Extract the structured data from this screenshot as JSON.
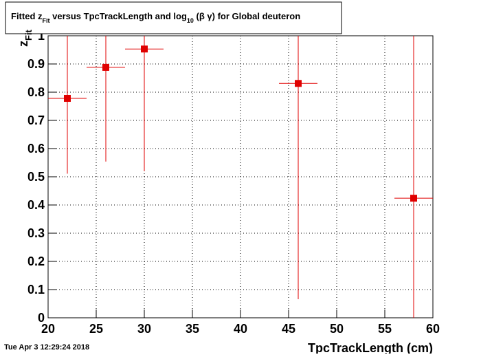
{
  "chart_data": {
    "type": "errorbar",
    "title_parts": [
      "Fitted  z",
      "Fit",
      "  versus TpcTrackLength and log",
      "10",
      " (β γ) for Global deuteron"
    ],
    "y_label_parts": [
      "z",
      "Fit"
    ],
    "x_label": "TpcTrackLength (cm)",
    "timestamp": "Tue Apr  3 12:29:24 2018",
    "x": [
      22,
      26,
      30,
      46,
      58
    ],
    "xerr": [
      2,
      2,
      2,
      2,
      2
    ],
    "values": [
      0.778,
      0.888,
      0.953,
      0.831,
      0.424
    ],
    "yerr": [
      0.267,
      0.334,
      0.433,
      0.765,
      0.6
    ],
    "color": "#e00000",
    "xlim": [
      20,
      60
    ],
    "ylim": [
      0,
      1
    ],
    "xticks": [
      20,
      25,
      30,
      35,
      40,
      45,
      50,
      55,
      60
    ],
    "yticks": [
      0,
      0.1,
      0.2,
      0.3,
      0.4,
      0.5,
      0.6,
      0.7,
      0.8,
      0.9,
      1
    ],
    "grid": true
  }
}
